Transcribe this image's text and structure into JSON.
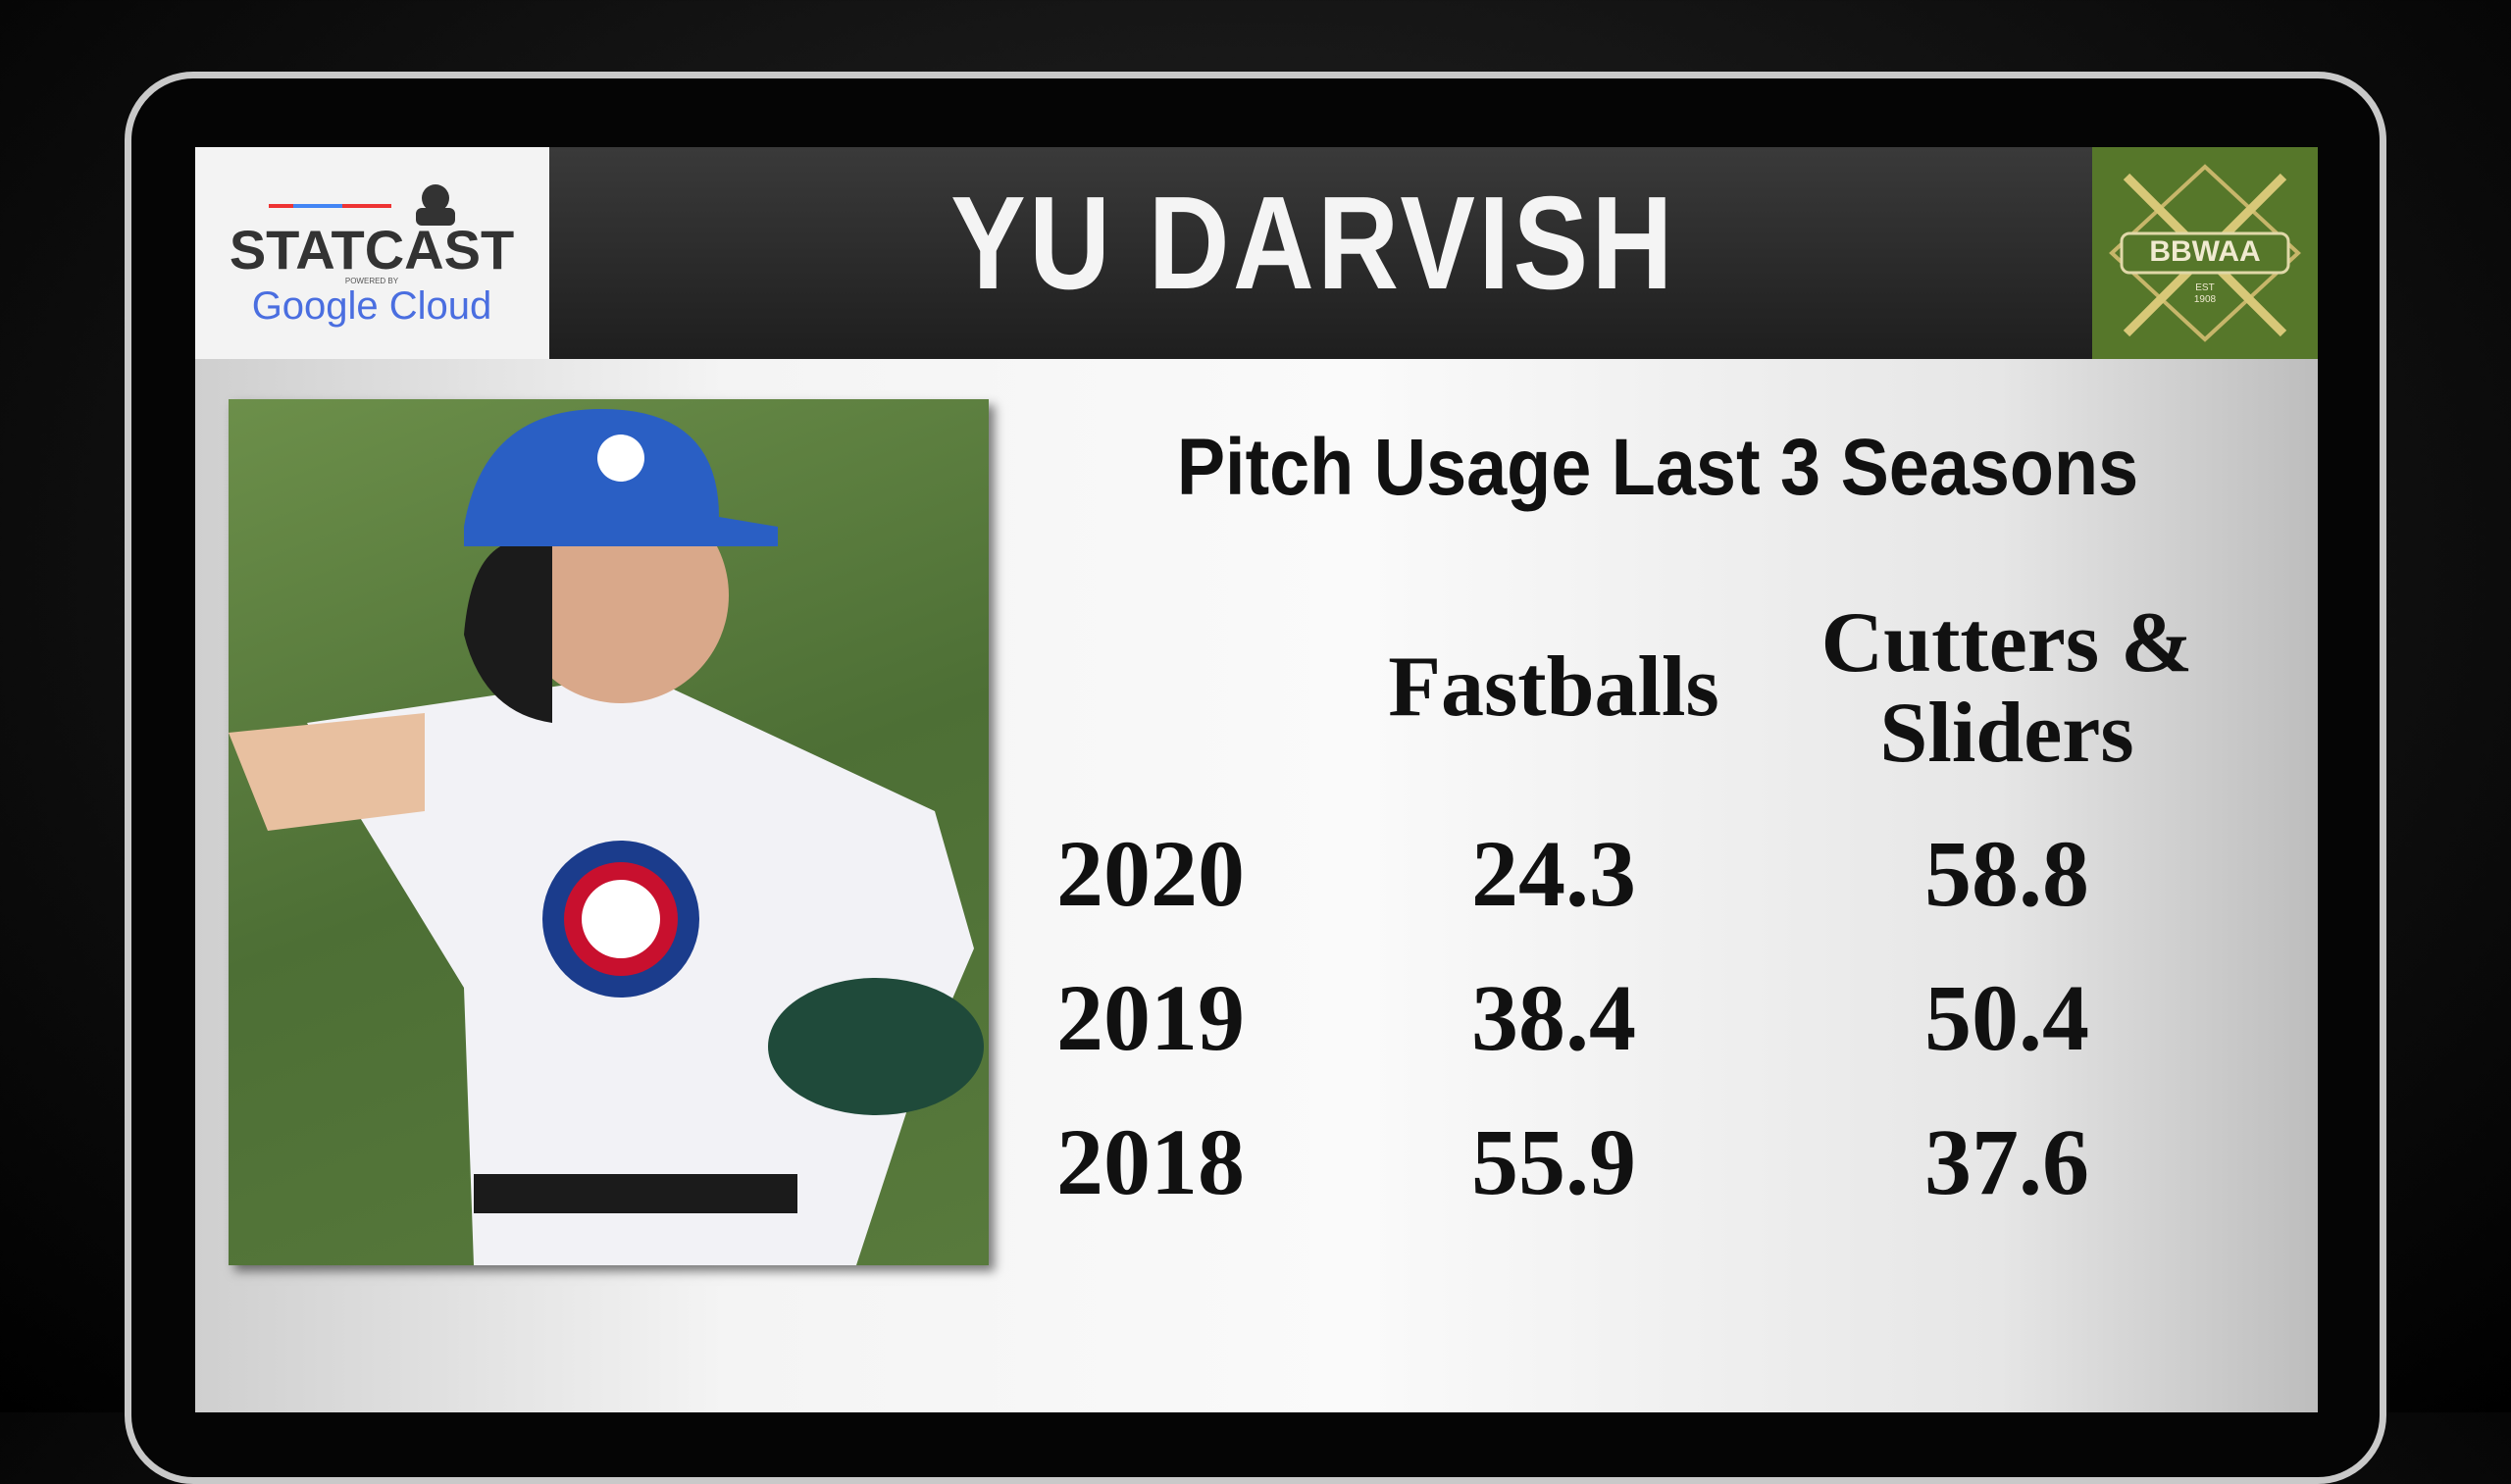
{
  "header": {
    "title": "YU DARVISH",
    "logo_left": {
      "brand": "STATCAST",
      "powered_by": "POWERED BY",
      "partner": "Google Cloud"
    },
    "logo_right": {
      "name": "BBWAA",
      "est": "EST",
      "year": "1908"
    }
  },
  "table": {
    "title": "Pitch Usage Last 3 Seasons",
    "columns": [
      "Fastballs",
      "Cutters & Sliders"
    ],
    "rows": [
      [
        "2020",
        24.3,
        58.8
      ],
      [
        "2019",
        38.4,
        50.4
      ],
      [
        "2018",
        55.9,
        37.6
      ]
    ]
  }
}
